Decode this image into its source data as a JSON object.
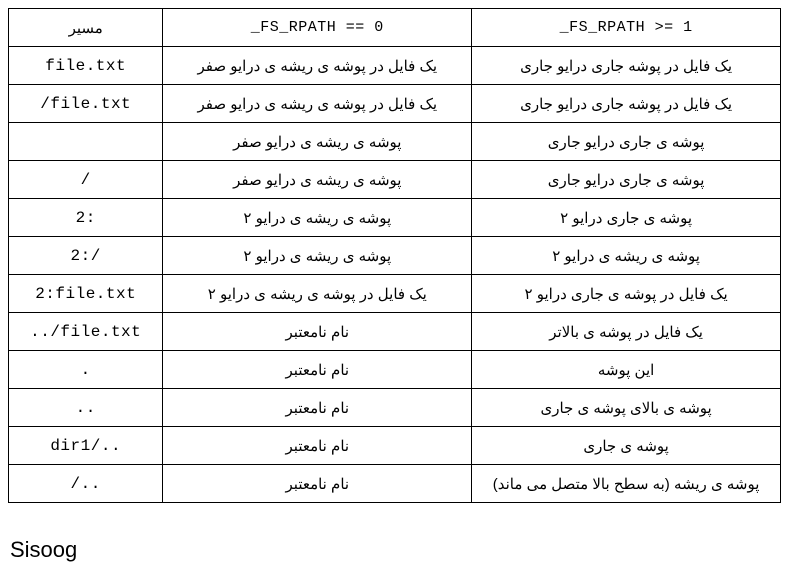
{
  "table": {
    "headers": {
      "path": "مسیر",
      "col1": "_FS_RPATH == 0",
      "col2": "_FS_RPATH >= 1"
    },
    "rows": [
      {
        "path": "file.txt",
        "c1": "یک فایل در پوشه ی ریشه ی درایو صفر",
        "c2": "یک فایل در پوشه جاری درایو جاری"
      },
      {
        "path": "/file.txt",
        "c1": "یک فایل در پوشه ی ریشه ی درایو صفر",
        "c2": "یک فایل در پوشه جاری درایو جاری"
      },
      {
        "path": "",
        "c1": "پوشه ی ریشه ی درایو صفر",
        "c2": "پوشه ی جاری درایو جاری"
      },
      {
        "path": "/",
        "c1": "پوشه ی ریشه ی درایو صفر",
        "c2": "پوشه ی جاری درایو جاری"
      },
      {
        "path": "2:",
        "c1": "پوشه ی ریشه ی درایو ۲",
        "c2": "پوشه ی جاری درایو ۲"
      },
      {
        "path": "2:/",
        "c1": "پوشه ی ریشه ی درایو ۲",
        "c2": "پوشه ی ریشه ی درایو ۲"
      },
      {
        "path": "2:file.txt",
        "c1": "یک فایل در پوشه ی ریشه ی درایو ۲",
        "c2": "یک فایل در پوشه ی جاری درایو ۲"
      },
      {
        "path": "../file.txt",
        "c1": "نام نامعتبر",
        "c2": "یک فایل در پوشه ی بالاتر"
      },
      {
        "path": ".",
        "c1": "نام نامعتبر",
        "c2": "این پوشه"
      },
      {
        "path": "..",
        "c1": "نام نامعتبر",
        "c2": "پوشه ی بالای پوشه ی جاری"
      },
      {
        "path": "dir1/..",
        "c1": "نام نامعتبر",
        "c2": "پوشه ی جاری"
      },
      {
        "path": "/..",
        "c1": "نام نامعتبر",
        "c2": "پوشه ی ریشه (به سطح بالا متصل می ماند)"
      }
    ]
  },
  "logo": "Sisoog"
}
